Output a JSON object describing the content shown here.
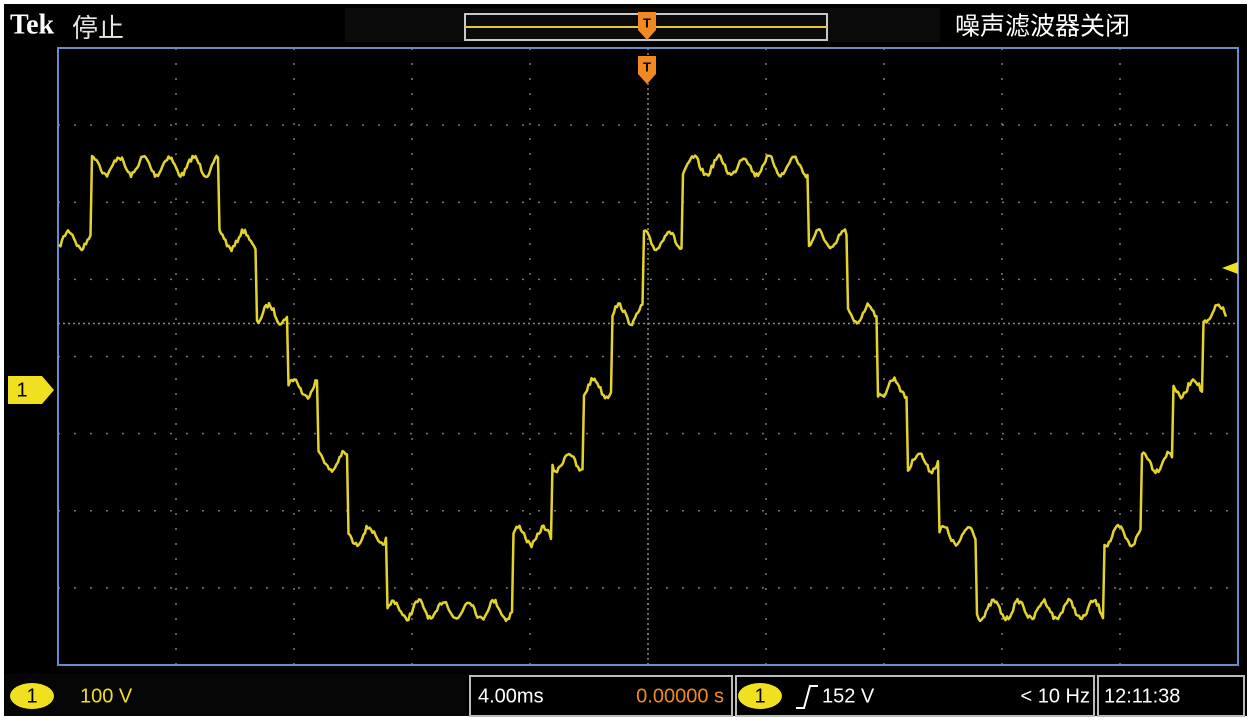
{
  "header": {
    "brand": "Tek",
    "status": "停止",
    "filter": "噪声滤波器关闭"
  },
  "channel_marker": "1",
  "trigger_marker": "T",
  "status_bar": {
    "channel": "1",
    "scale": "100 V",
    "timebase": "4.00ms",
    "position": "0.00000 s",
    "trigger_channel": "1",
    "trigger_level": "152 V",
    "frequency": "< 10 Hz",
    "time": "12:11:38"
  }
}
